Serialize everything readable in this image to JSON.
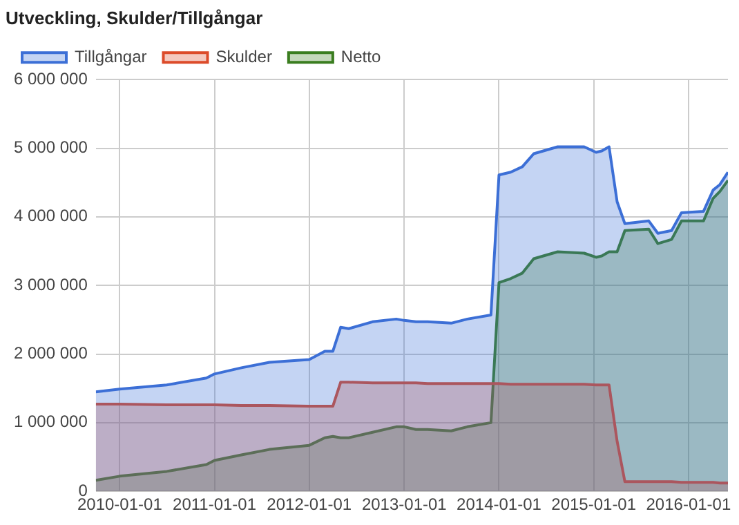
{
  "chart_data": {
    "type": "area",
    "title": "Utveckling, Skulder/Tillgångar",
    "x": [
      "2009-10-01",
      "2010-01-01",
      "2010-07-01",
      "2010-12-01",
      "2011-01-01",
      "2011-04-15",
      "2011-08-01",
      "2012-01-01",
      "2012-03-01",
      "2012-04-01",
      "2012-05-01",
      "2012-06-01",
      "2012-09-01",
      "2012-12-01",
      "2013-01-01",
      "2013-02-15",
      "2013-04-01",
      "2013-07-01",
      "2013-09-01",
      "2013-12-01",
      "2014-01-01",
      "2014-02-15",
      "2014-04-01",
      "2014-05-15",
      "2014-08-15",
      "2014-11-25",
      "2015-01-10",
      "2015-02-01",
      "2015-03-01",
      "2015-04-01",
      "2015-05-01",
      "2015-08-01",
      "2015-09-05",
      "2015-10-28",
      "2015-12-05",
      "2016-02-28",
      "2016-04-05",
      "2016-05-01",
      "2016-06-01"
    ],
    "series": [
      {
        "name": "Tillgångar",
        "color": "#3c6fd6",
        "values": [
          1450000,
          1490000,
          1550000,
          1650000,
          1710000,
          1800000,
          1880000,
          1920000,
          2040000,
          2040000,
          2390000,
          2370000,
          2470000,
          2510000,
          2490000,
          2470000,
          2470000,
          2450000,
          2510000,
          2570000,
          4610000,
          4650000,
          4730000,
          4920000,
          5020000,
          5020000,
          4940000,
          4960000,
          5020000,
          4220000,
          3900000,
          3940000,
          3760000,
          3800000,
          4060000,
          4080000,
          4390000,
          4470000,
          4650000
        ]
      },
      {
        "name": "Skulder",
        "color": "#dc4b2a",
        "values": [
          1270000,
          1270000,
          1260000,
          1260000,
          1260000,
          1250000,
          1250000,
          1240000,
          1240000,
          1240000,
          1590000,
          1590000,
          1580000,
          1580000,
          1580000,
          1580000,
          1570000,
          1570000,
          1570000,
          1570000,
          1570000,
          1560000,
          1560000,
          1560000,
          1560000,
          1560000,
          1550000,
          1550000,
          1550000,
          730000,
          140000,
          140000,
          140000,
          140000,
          130000,
          130000,
          130000,
          120000,
          120000
        ]
      },
      {
        "name": "Netto",
        "color": "#3a7d1f",
        "values": [
          160000,
          220000,
          290000,
          390000,
          450000,
          530000,
          610000,
          670000,
          780000,
          800000,
          780000,
          780000,
          860000,
          940000,
          940000,
          900000,
          900000,
          880000,
          940000,
          1000000,
          3040000,
          3100000,
          3180000,
          3390000,
          3490000,
          3470000,
          3410000,
          3430000,
          3490000,
          3490000,
          3800000,
          3820000,
          3610000,
          3670000,
          3940000,
          3940000,
          4270000,
          4370000,
          4530000
        ]
      }
    ],
    "xlim": [
      "2009-10-01",
      "2016-06-01"
    ],
    "xticks": [
      "2010-01-01",
      "2011-01-01",
      "2012-01-01",
      "2013-01-01",
      "2014-01-01",
      "2015-01-01",
      "2016-01-01"
    ],
    "ylim": [
      0,
      6000000
    ],
    "yticks": [
      {
        "value": 0,
        "label": "0"
      },
      {
        "value": 1000000,
        "label": "1 000 000"
      },
      {
        "value": 2000000,
        "label": "2 000 000"
      },
      {
        "value": 3000000,
        "label": "3 000 000"
      },
      {
        "value": 4000000,
        "label": "4 000 000"
      },
      {
        "value": 5000000,
        "label": "5 000 000"
      },
      {
        "value": 6000000,
        "label": "6 000 000"
      }
    ],
    "grid": true,
    "legend": "top left"
  }
}
